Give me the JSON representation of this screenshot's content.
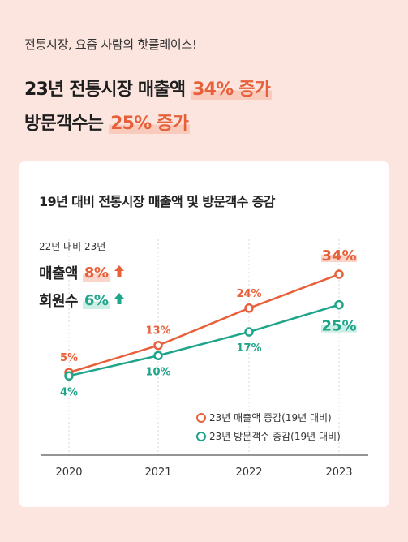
{
  "header": {
    "subtitle": "전통시장, 요즘 사람의 핫플레이스!",
    "line1_prefix": "23년 전통시장 매출액 ",
    "line1_highlight": "34% 증가",
    "line2_prefix": "방문객수는 ",
    "line2_highlight": "25% 증가"
  },
  "card": {
    "title": "19년 대비 전통시장 매출액 및 방문객수 증감",
    "comparison_label": "22년 대비 23년",
    "rows": [
      {
        "name": "매출액",
        "value": "8%",
        "color": "#e8603a",
        "icon": "up-arrow-icon"
      },
      {
        "name": "회원수",
        "value": "6%",
        "color": "#1ea58a",
        "icon": "up-arrow-icon"
      }
    ]
  },
  "colors": {
    "orange": "#e8603a",
    "green": "#1ea58a",
    "background": "#fbe5de",
    "card": "#ffffff"
  },
  "chart_data": {
    "type": "line",
    "x": [
      "2020",
      "2021",
      "2022",
      "2023"
    ],
    "ylim": [
      0,
      40
    ],
    "grid": "vertical dashed",
    "legend_position": "bottom-right",
    "series": [
      {
        "name": "23년 매출액 증감(19년 대비)",
        "values": [
          5,
          13,
          24,
          34
        ],
        "labels": [
          "5%",
          "13%",
          "24%",
          "34%"
        ],
        "color": "#e8603a"
      },
      {
        "name": "23년 방문객수 증감(19년 대비)",
        "values": [
          4,
          10,
          17,
          25
        ],
        "labels": [
          "4%",
          "10%",
          "17%",
          "25%"
        ],
        "color": "#1ea58a"
      }
    ]
  }
}
